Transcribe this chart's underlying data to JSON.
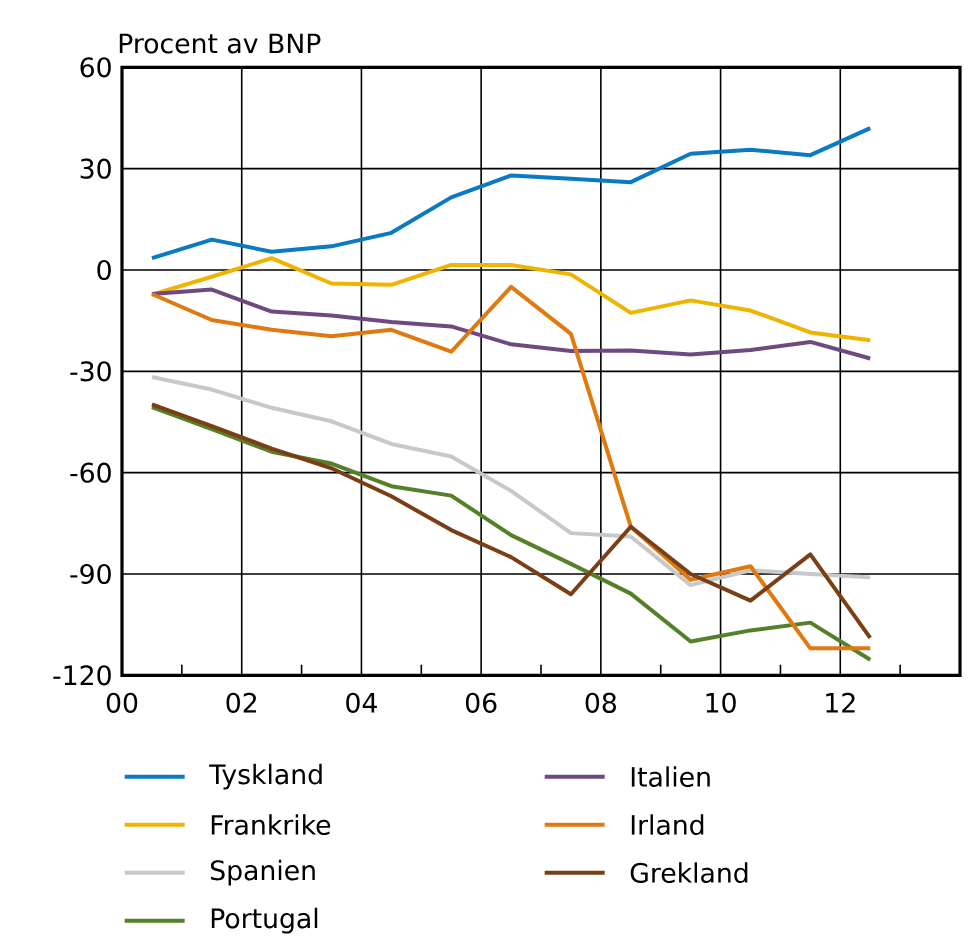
{
  "chart_data": {
    "type": "line",
    "ylabel": "Procent av BNP",
    "x": [
      0.5,
      1.5,
      2.5,
      3.5,
      4.5,
      5.5,
      6.5,
      7.5,
      8.5,
      9.5,
      10.5,
      11.5,
      12.5
    ],
    "series": [
      {
        "name": "Tyskland",
        "color": "#0a7ac4",
        "values": [
          3.5,
          9,
          5.4,
          7,
          11,
          21.5,
          28,
          27,
          26,
          34.4,
          35.6,
          34,
          42
        ]
      },
      {
        "name": "Frankrike",
        "color": "#f0b400",
        "values": [
          -7.3,
          -2,
          3.5,
          -4,
          -4.4,
          1.5,
          1.5,
          -1.3,
          -12.7,
          -9,
          -12,
          -18.5,
          -20.8
        ]
      },
      {
        "name": "Spanien",
        "color": "#c8c8c8",
        "values": [
          -31.7,
          -35.4,
          -40.8,
          -44.8,
          -51.5,
          -55.2,
          -65.4,
          -77.9,
          -78.9,
          -93.3,
          -88.9,
          -90,
          -91
        ]
      },
      {
        "name": "Portugal",
        "color": "#55802a",
        "values": [
          -40.6,
          -47.1,
          -53.8,
          -57.3,
          -64,
          -66.8,
          -78.5,
          -87,
          -95.8,
          -110,
          -106.7,
          -104.4,
          -115.4
        ]
      },
      {
        "name": "Italien",
        "color": "#6e4a80",
        "values": [
          -7.1,
          -5.8,
          -12.3,
          -13.5,
          -15.4,
          -16.7,
          -22,
          -24,
          -23.8,
          -25,
          -23.7,
          -21.3,
          -26.2
        ]
      },
      {
        "name": "Irland",
        "color": "#e07a10",
        "values": [
          -7.1,
          -14.8,
          -17.7,
          -19.6,
          -17.7,
          -24.2,
          -5,
          -18.9,
          -76,
          -91.7,
          -87.7,
          -112,
          -112
        ]
      },
      {
        "name": "Grekland",
        "color": "#7a3f14",
        "values": [
          -39.8,
          -46.2,
          -52.9,
          -58.7,
          -67,
          -77,
          -85,
          -96,
          -76,
          -90,
          -97.9,
          -84.2,
          -108.9
        ]
      }
    ],
    "xlim": [
      0,
      14
    ],
    "ylim": [
      -120,
      60
    ],
    "xticks": [
      {
        "value": 0,
        "label": "00"
      },
      {
        "value": 1,
        "label": null
      },
      {
        "value": 2,
        "label": "02"
      },
      {
        "value": 3,
        "label": null
      },
      {
        "value": 4,
        "label": "04"
      },
      {
        "value": 5,
        "label": null
      },
      {
        "value": 6,
        "label": "06"
      },
      {
        "value": 7,
        "label": null
      },
      {
        "value": 8,
        "label": "08"
      },
      {
        "value": 9,
        "label": null
      },
      {
        "value": 10,
        "label": "10"
      },
      {
        "value": 11,
        "label": null
      },
      {
        "value": 12,
        "label": "12"
      },
      {
        "value": 13,
        "label": null
      },
      {
        "value": 14,
        "label": null
      }
    ],
    "yticks": [
      -120,
      -90,
      -60,
      -30,
      0,
      30,
      60
    ],
    "grid": true,
    "legend": "bottom",
    "marker": "none",
    "line_style": "solid"
  }
}
